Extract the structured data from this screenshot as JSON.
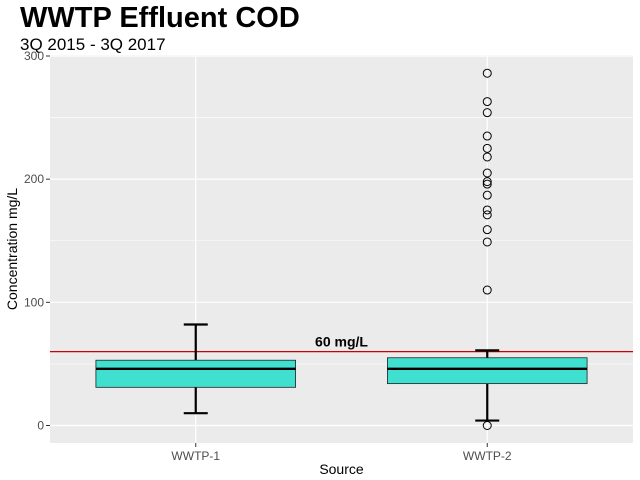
{
  "chart_data": {
    "type": "box",
    "title": "WWTP Effluent COD",
    "subtitle": "3Q 2015 - 3Q 2017",
    "xlabel": "Source",
    "ylabel": "Concentration mg/L",
    "ylim": [
      -15,
      302
    ],
    "yticks": [
      0,
      100,
      200,
      300
    ],
    "grid": true,
    "categories": [
      "WWTP-1",
      "WWTP-2"
    ],
    "boxes": [
      {
        "category": "WWTP-1",
        "whisker_low": 10,
        "q1": 31,
        "median": 46,
        "q3": 53,
        "whisker_high": 82,
        "outliers": []
      },
      {
        "category": "WWTP-2",
        "whisker_low": 4,
        "q1": 34,
        "median": 46,
        "q3": 55,
        "whisker_high": 61,
        "outliers": [
          0,
          110,
          149,
          159,
          171,
          175,
          187,
          196,
          198,
          205,
          218,
          225,
          235,
          254,
          263,
          286
        ]
      }
    ],
    "reference_line": {
      "value": 60,
      "label": "60 mg/L",
      "color": "#cc0000"
    },
    "box_fill": "#40e0d0",
    "panel_background": "#ebebeb"
  }
}
